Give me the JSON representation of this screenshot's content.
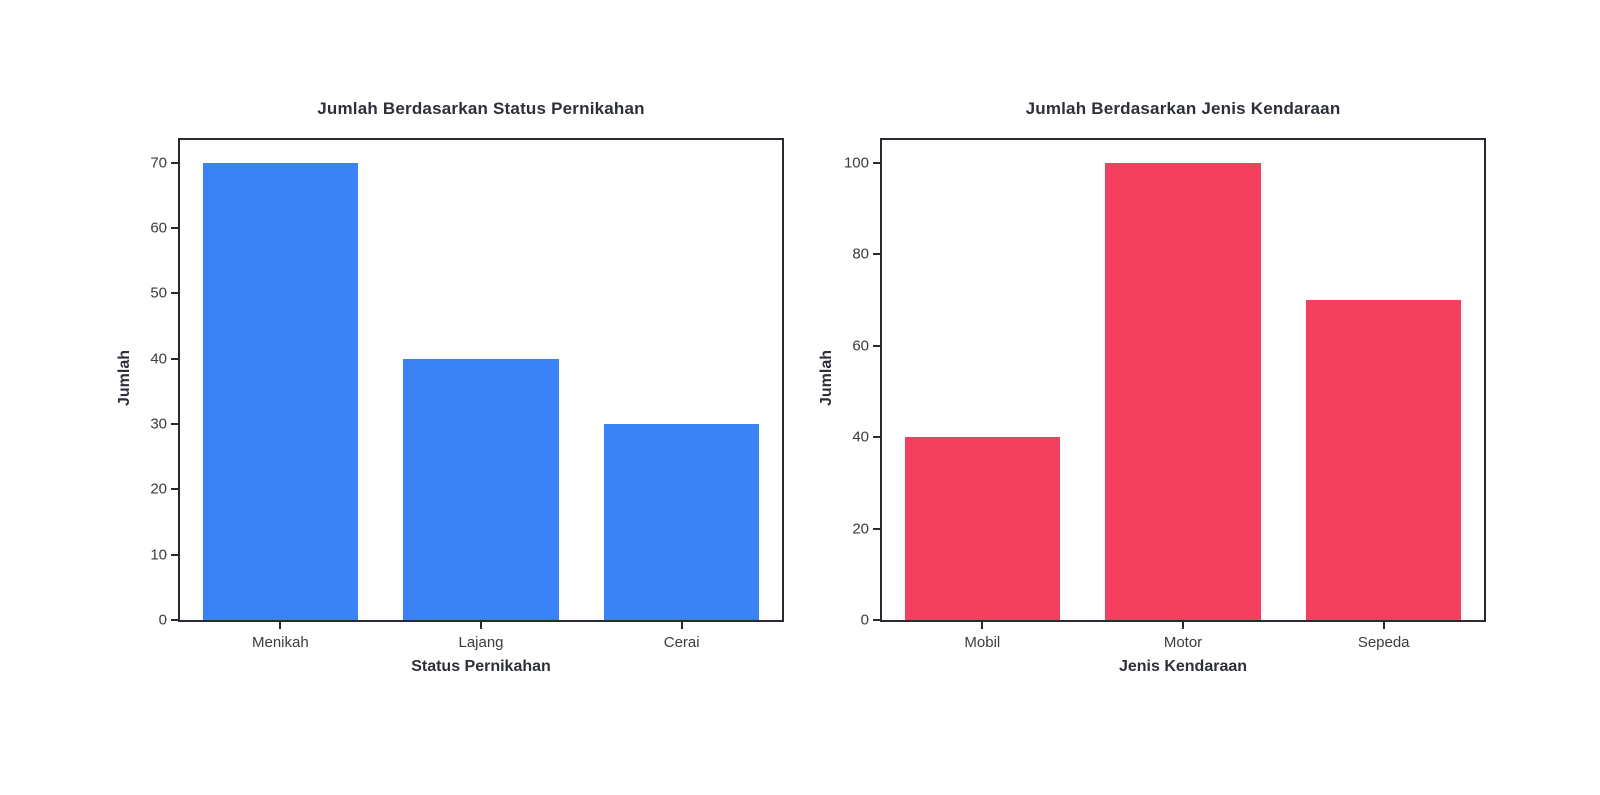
{
  "chart_data": [
    {
      "type": "bar",
      "title": "Jumlah Berdasarkan Status Pernikahan",
      "xlabel": "Status Pernikahan",
      "ylabel": "Jumlah",
      "categories": [
        "Menikah",
        "Lajang",
        "Cerai"
      ],
      "values": [
        70,
        40,
        30
      ],
      "yticks": [
        0,
        10,
        20,
        30,
        40,
        50,
        60,
        70
      ],
      "ylim": [
        0,
        73.5
      ],
      "bar_color": "#3b82f6",
      "grid": false,
      "legend": null
    },
    {
      "type": "bar",
      "title": "Jumlah Berdasarkan Jenis Kendaraan",
      "xlabel": "Jenis Kendaraan",
      "ylabel": "Jumlah",
      "categories": [
        "Mobil",
        "Motor",
        "Sepeda"
      ],
      "values": [
        40,
        100,
        70
      ],
      "yticks": [
        0,
        20,
        40,
        60,
        80,
        100
      ],
      "ylim": [
        0,
        105
      ],
      "bar_color": "#f43f5e",
      "grid": false,
      "legend": null
    }
  ],
  "colors": {
    "background": "#ffffff",
    "spine": "#2a2b32",
    "tick_text": "#3b3b40",
    "title_text": "#2e3039",
    "bar_blue": "#3b82f6",
    "bar_rose": "#f43f5e"
  }
}
